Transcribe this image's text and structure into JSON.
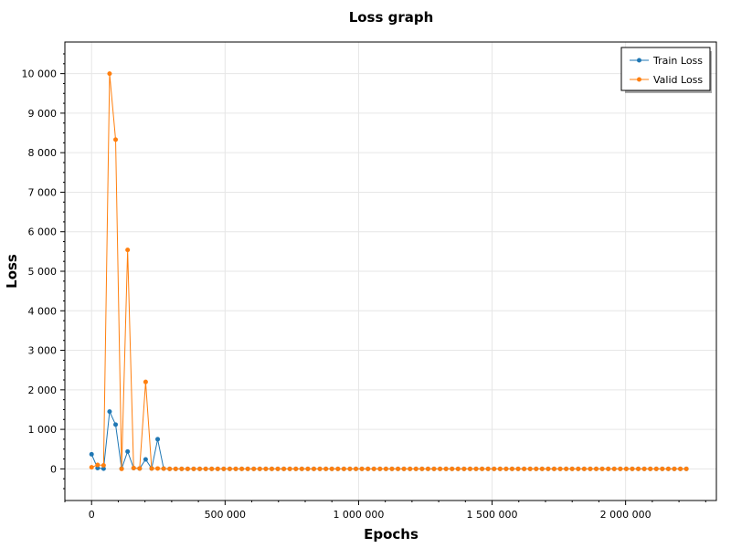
{
  "chart_data": {
    "type": "line",
    "title": "Loss graph",
    "xlabel": "Epochs",
    "ylabel": "Loss",
    "xlim": [
      -100000,
      2340000
    ],
    "ylim": [
      -800,
      10800
    ],
    "xticks": [
      0,
      500000,
      1000000,
      1500000,
      2000000
    ],
    "xtick_labels": [
      "0",
      "500 000",
      "1 000 000",
      "1 500 000",
      "2 000 000"
    ],
    "yticks": [
      0,
      1000,
      2000,
      3000,
      4000,
      5000,
      6000,
      7000,
      8000,
      9000,
      10000
    ],
    "ytick_labels": [
      "0",
      "1 000",
      "2 000",
      "3 000",
      "4 000",
      "5 000",
      "6 000",
      "7 000",
      "8 000",
      "9 000",
      "10 000"
    ],
    "grid": true,
    "legend_position": "top-right",
    "x": [
      0,
      22500,
      45000,
      67500,
      90000,
      112500,
      135000,
      157500,
      180000,
      202500,
      225000,
      247500,
      270000,
      292500,
      315000,
      337500,
      360000,
      382500,
      405000,
      427500,
      450000,
      472500,
      495000,
      517500,
      540000,
      562500,
      585000,
      607500,
      630000,
      652500,
      675000,
      697500,
      720000,
      742500,
      765000,
      787500,
      810000,
      832500,
      855000,
      877500,
      900000,
      922500,
      945000,
      967500,
      990000,
      1012500,
      1035000,
      1057500,
      1080000,
      1102500,
      1125000,
      1147500,
      1170000,
      1192500,
      1215000,
      1237500,
      1260000,
      1282500,
      1305000,
      1327500,
      1350000,
      1372500,
      1395000,
      1417500,
      1440000,
      1462500,
      1485000,
      1507500,
      1530000,
      1552500,
      1575000,
      1597500,
      1620000,
      1642500,
      1665000,
      1687500,
      1710000,
      1732500,
      1755000,
      1777500,
      1800000,
      1822500,
      1845000,
      1867500,
      1890000,
      1912500,
      1935000,
      1957500,
      1980000,
      2002500,
      2025000,
      2047500,
      2070000,
      2092500,
      2115000,
      2137500,
      2160000,
      2182500,
      2205000,
      2227500
    ],
    "series": [
      {
        "name": "Train Loss",
        "color": "#1f77b4",
        "values": [
          370,
          20,
          5,
          1450,
          1120,
          5,
          440,
          20,
          10,
          240,
          10,
          750,
          5,
          0,
          0,
          0,
          0,
          0,
          0,
          0,
          0,
          0,
          0,
          0,
          0,
          0,
          0,
          0,
          0,
          0,
          0,
          0,
          0,
          0,
          0,
          0,
          0,
          0,
          0,
          0,
          0,
          0,
          0,
          0,
          0,
          0,
          0,
          0,
          0,
          0,
          0,
          0,
          0,
          0,
          0,
          0,
          0,
          0,
          0,
          0,
          0,
          0,
          0,
          0,
          0,
          0,
          0,
          0,
          0,
          0,
          0,
          0,
          0,
          0,
          0,
          0,
          0,
          0,
          0,
          0,
          0,
          0,
          0,
          0,
          0,
          0,
          0,
          0,
          0,
          0,
          0,
          0,
          0,
          0,
          0,
          0,
          0,
          0,
          0,
          0
        ]
      },
      {
        "name": "Valid Loss",
        "color": "#ff7f0e",
        "values": [
          40,
          100,
          90,
          10000,
          8330,
          0,
          5540,
          20,
          10,
          2200,
          10,
          10,
          5,
          0,
          0,
          0,
          0,
          0,
          0,
          0,
          0,
          0,
          0,
          0,
          0,
          0,
          0,
          0,
          0,
          0,
          0,
          0,
          0,
          0,
          0,
          0,
          0,
          0,
          0,
          0,
          0,
          0,
          0,
          0,
          0,
          0,
          0,
          0,
          0,
          0,
          0,
          0,
          0,
          0,
          0,
          0,
          0,
          0,
          0,
          0,
          0,
          0,
          0,
          0,
          0,
          0,
          0,
          0,
          0,
          0,
          0,
          0,
          0,
          0,
          0,
          0,
          0,
          0,
          0,
          0,
          0,
          0,
          0,
          0,
          0,
          0,
          0,
          0,
          0,
          0,
          0,
          0,
          0,
          0,
          0,
          0,
          0,
          0,
          0,
          0
        ]
      }
    ]
  }
}
